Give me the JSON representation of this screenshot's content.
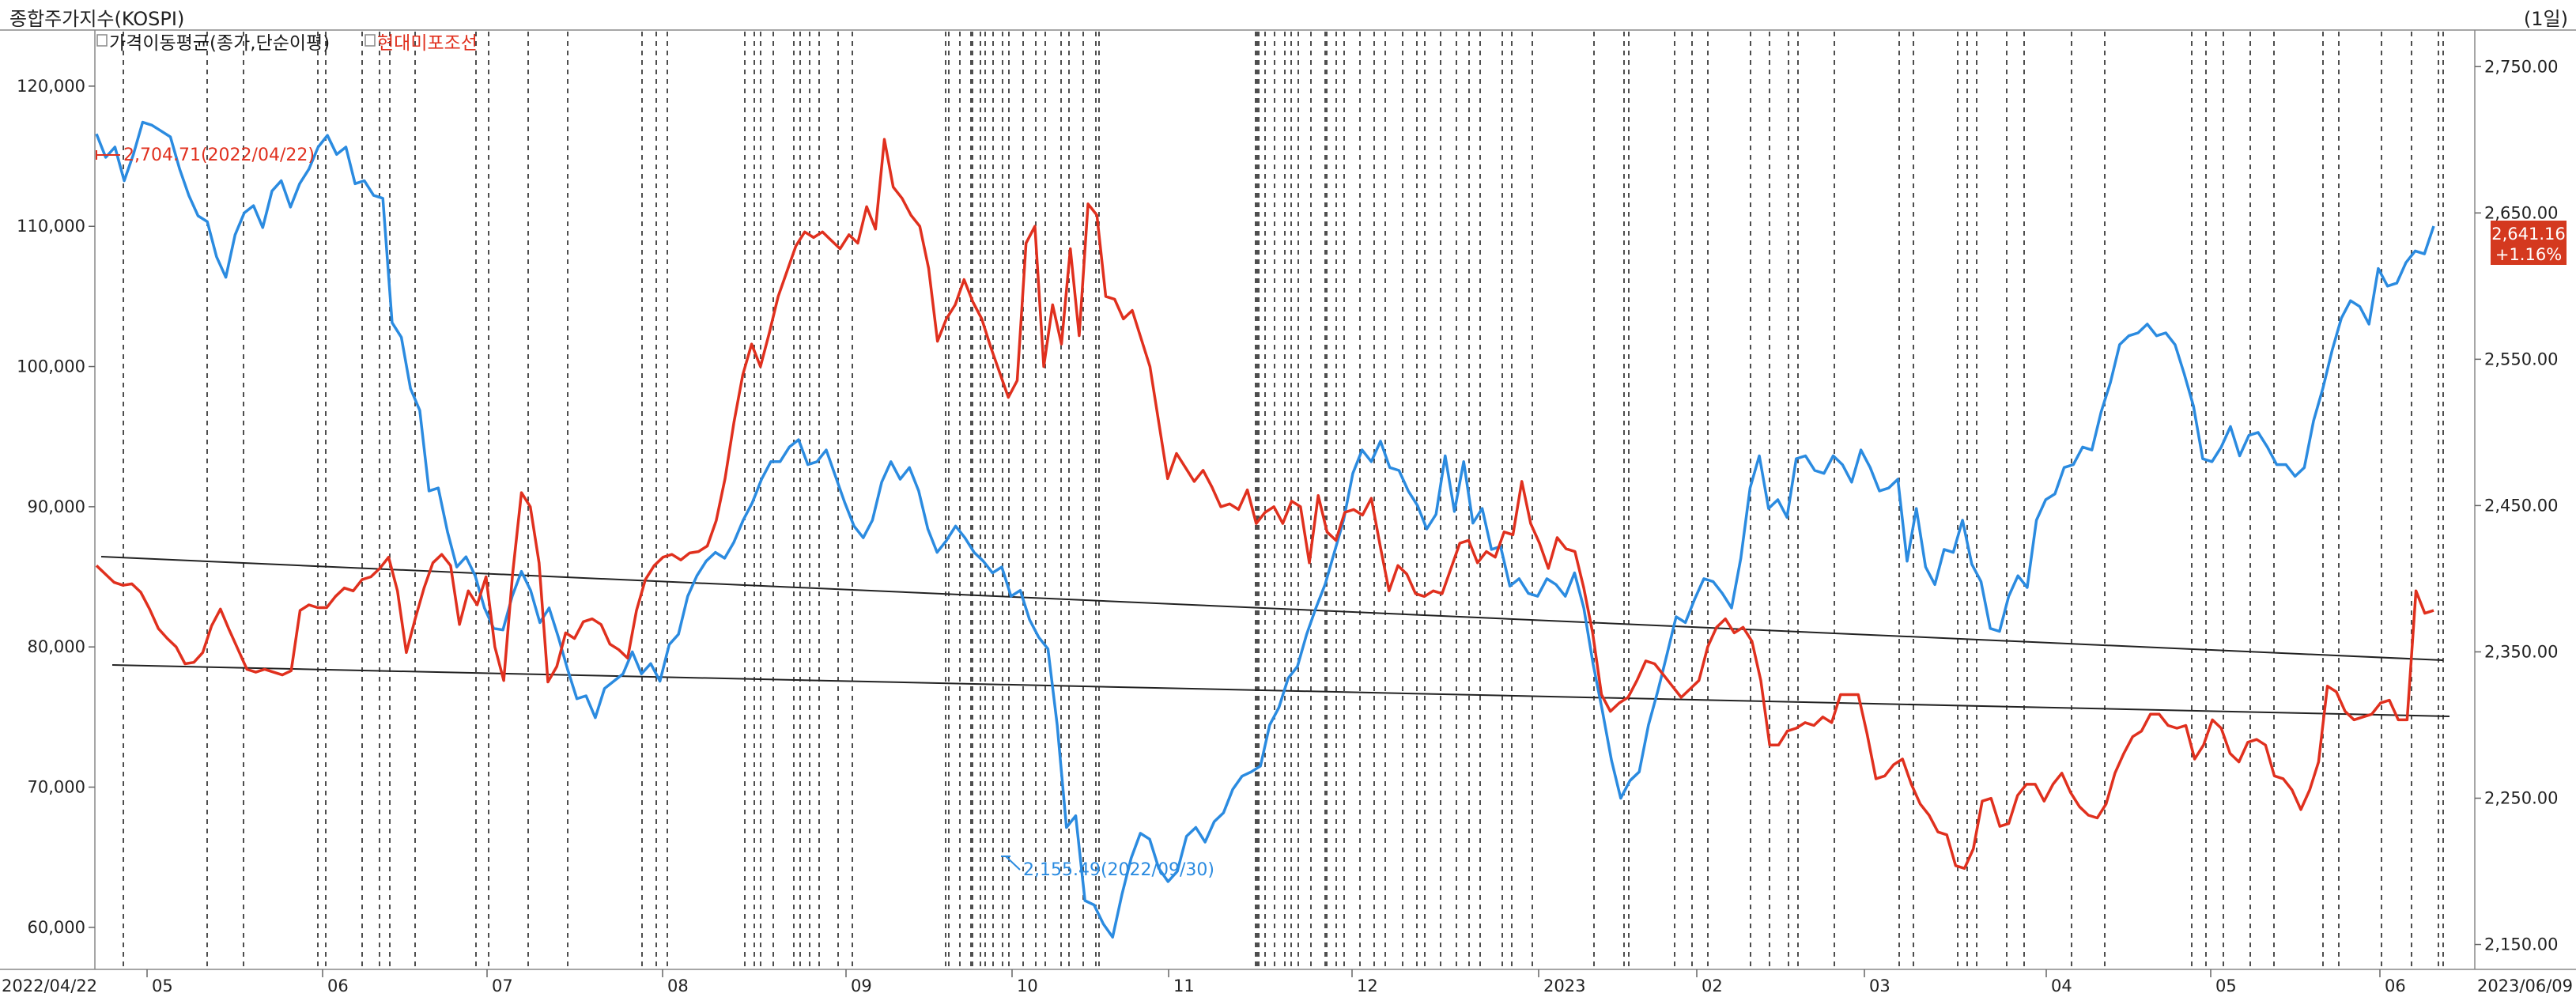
{
  "title": "종합주가지수(KOSPI)",
  "period": "(1일)",
  "legend": {
    "items": [
      {
        "label": "가격이동평균(종가,단순이평)",
        "color": "#1b1b1b"
      },
      {
        "label": "현대미포조선",
        "color": "#e0301e"
      }
    ]
  },
  "annotations": {
    "high_label": "2,704.71(2022/04/22)",
    "low_label": "2,155.49(2022/09/30)",
    "last_price": "2,641.16",
    "last_change": "+1.16%"
  },
  "chart_data": {
    "type": "line",
    "x_start": "2022/04/22",
    "x_end": "2023/06/09",
    "x_ticks": [
      "2022/04/22",
      "05",
      "06",
      "07",
      "08",
      "09",
      "10",
      "11",
      "12",
      "2023",
      "02",
      "03",
      "04",
      "05",
      "06",
      "2023/06/09"
    ],
    "y_left": {
      "ticks": [
        "120,000",
        "110,000",
        "100,000",
        "90,000",
        "80,000",
        "70,000",
        "60,000"
      ],
      "range": [
        57000,
        124000
      ]
    },
    "y_right": {
      "ticks": [
        "2,750.00",
        "2,650.00",
        "2,550.00",
        "2,450.00",
        "2,350.00",
        "2,250.00",
        "2,150.00"
      ],
      "range": [
        2133,
        2775
      ]
    },
    "series": [
      {
        "name": "종합주가지수(KOSPI)",
        "axis": "right",
        "color": "#2b8be0",
        "values": [
          2704,
          2688,
          2695,
          2672,
          2690,
          2712,
          2710,
          2706,
          2702,
          2680,
          2662,
          2648,
          2644,
          2620,
          2606,
          2635,
          2650,
          2655,
          2640,
          2665,
          2672,
          2654,
          2670,
          2680,
          2695,
          2703,
          2690,
          2695,
          2670,
          2672,
          2662,
          2660,
          2575,
          2565,
          2530,
          2515,
          2460,
          2462,
          2432,
          2408,
          2415,
          2402,
          2380,
          2366,
          2365,
          2388,
          2405,
          2392,
          2370,
          2380,
          2360,
          2338,
          2318,
          2320,
          2305,
          2325,
          2330,
          2335,
          2350,
          2335,
          2342,
          2330,
          2355,
          2362,
          2388,
          2402,
          2412,
          2418,
          2414,
          2425,
          2440,
          2452,
          2468,
          2480,
          2480,
          2490,
          2495,
          2478,
          2480,
          2488,
          2470,
          2452,
          2436,
          2428,
          2440,
          2466,
          2480,
          2468,
          2476,
          2460,
          2434,
          2418,
          2426,
          2436,
          2428,
          2418,
          2412,
          2404,
          2408,
          2388,
          2392,
          2372,
          2360,
          2352,
          2300,
          2230,
          2238,
          2180,
          2177,
          2164,
          2155,
          2184,
          2209,
          2226,
          2222,
          2202,
          2193,
          2200,
          2224,
          2230,
          2220,
          2234,
          2240,
          2256,
          2265,
          2268,
          2272,
          2300,
          2312,
          2332,
          2340,
          2362,
          2380,
          2396,
          2418,
          2440,
          2472,
          2488,
          2480,
          2494,
          2476,
          2474,
          2460,
          2450,
          2434,
          2444,
          2484,
          2446,
          2480,
          2438,
          2448,
          2420,
          2422,
          2395,
          2400,
          2390,
          2388,
          2400,
          2396,
          2388,
          2404,
          2380,
          2342,
          2310,
          2276,
          2250,
          2262,
          2268,
          2300,
          2323,
          2348,
          2374,
          2370,
          2386,
          2400,
          2398,
          2390,
          2380,
          2414,
          2462,
          2484,
          2448,
          2454,
          2442,
          2482,
          2484,
          2474,
          2472,
          2484,
          2478,
          2466,
          2488,
          2476,
          2460,
          2462,
          2468,
          2412,
          2448,
          2408,
          2396,
          2420,
          2418,
          2440,
          2410,
          2398,
          2366,
          2364,
          2388,
          2402,
          2394,
          2440,
          2454,
          2458,
          2476,
          2478,
          2490,
          2488,
          2514,
          2534,
          2560,
          2566,
          2568,
          2574,
          2566,
          2568,
          2560,
          2540,
          2518,
          2482,
          2480,
          2490,
          2504,
          2484,
          2498,
          2500,
          2490,
          2478,
          2478,
          2470,
          2476,
          2508,
          2530,
          2556,
          2578,
          2590,
          2586,
          2574,
          2612,
          2600,
          2602,
          2616,
          2624,
          2622,
          2641
        ]
      },
      {
        "name": "현대미포조선",
        "axis": "left",
        "color": "#e0301e",
        "values": [
          85800,
          85200,
          84600,
          84400,
          84500,
          83900,
          82700,
          81300,
          80600,
          80000,
          78800,
          78900,
          79600,
          81500,
          82700,
          81200,
          79800,
          78400,
          78200,
          78400,
          78200,
          78000,
          78300,
          82600,
          83000,
          82800,
          82800,
          83600,
          84200,
          84000,
          84800,
          85000,
          85600,
          86400,
          84000,
          79600,
          82000,
          84200,
          86000,
          86600,
          85800,
          81600,
          84000,
          83000,
          85000,
          80000,
          77600,
          85200,
          91000,
          90000,
          86000,
          77500,
          78600,
          81000,
          80600,
          81800,
          82000,
          81600,
          80200,
          79800,
          79200,
          82600,
          84800,
          85800,
          86400,
          86600,
          86200,
          86700,
          86800,
          87200,
          89000,
          92000,
          96000,
          99400,
          101600,
          100000,
          102400,
          105000,
          106800,
          108600,
          109600,
          109200,
          109600,
          109000,
          108400,
          109400,
          108800,
          111400,
          109800,
          116200,
          112800,
          112000,
          110800,
          110000,
          107000,
          101800,
          103400,
          104400,
          106200,
          104600,
          103400,
          101400,
          99600,
          97800,
          99000,
          108800,
          110000,
          100000,
          104400,
          101600,
          108400,
          102200,
          111600,
          110800,
          105000,
          104800,
          103400,
          104000,
          102000,
          100000,
          96000,
          92000,
          93800,
          92800,
          91800,
          92600,
          91400,
          90000,
          90200,
          89800,
          91200,
          88800,
          89600,
          90000,
          88800,
          90400,
          90000,
          86000,
          90800,
          88200,
          87600,
          89600,
          89800,
          89400,
          90600,
          87200,
          84000,
          85800,
          85200,
          83800,
          83600,
          84000,
          83800,
          85600,
          87400,
          87600,
          86000,
          86800,
          86400,
          88200,
          88000,
          91800,
          88800,
          87400,
          85600,
          87800,
          87000,
          86800,
          84200,
          81000,
          76600,
          75400,
          76000,
          76400,
          77600,
          79000,
          78800,
          78000,
          77200,
          76400,
          77000,
          77600,
          80000,
          81400,
          82000,
          81000,
          81400,
          80400,
          77600,
          73000,
          73000,
          74000,
          74200,
          74600,
          74400,
          75000,
          74600,
          76600,
          76600,
          76600,
          73800,
          70600,
          70800,
          71600,
          72000,
          70200,
          68800,
          68000,
          66800,
          66600,
          64400,
          64200,
          65600,
          69000,
          69200,
          67200,
          67400,
          69400,
          70200,
          70200,
          69000,
          70200,
          71000,
          69600,
          68600,
          68000,
          67800,
          68800,
          71000,
          72400,
          73600,
          74000,
          75200,
          75200,
          74400,
          74200,
          74400,
          72000,
          73000,
          74800,
          74200,
          72400,
          71800,
          73200,
          73400,
          73000,
          70800,
          70600,
          69800,
          68400,
          69800,
          71800,
          77200,
          76800,
          75400,
          74800,
          75000,
          75200,
          76000,
          76200,
          74800,
          74800,
          84000,
          82400,
          82600
        ]
      }
    ]
  }
}
